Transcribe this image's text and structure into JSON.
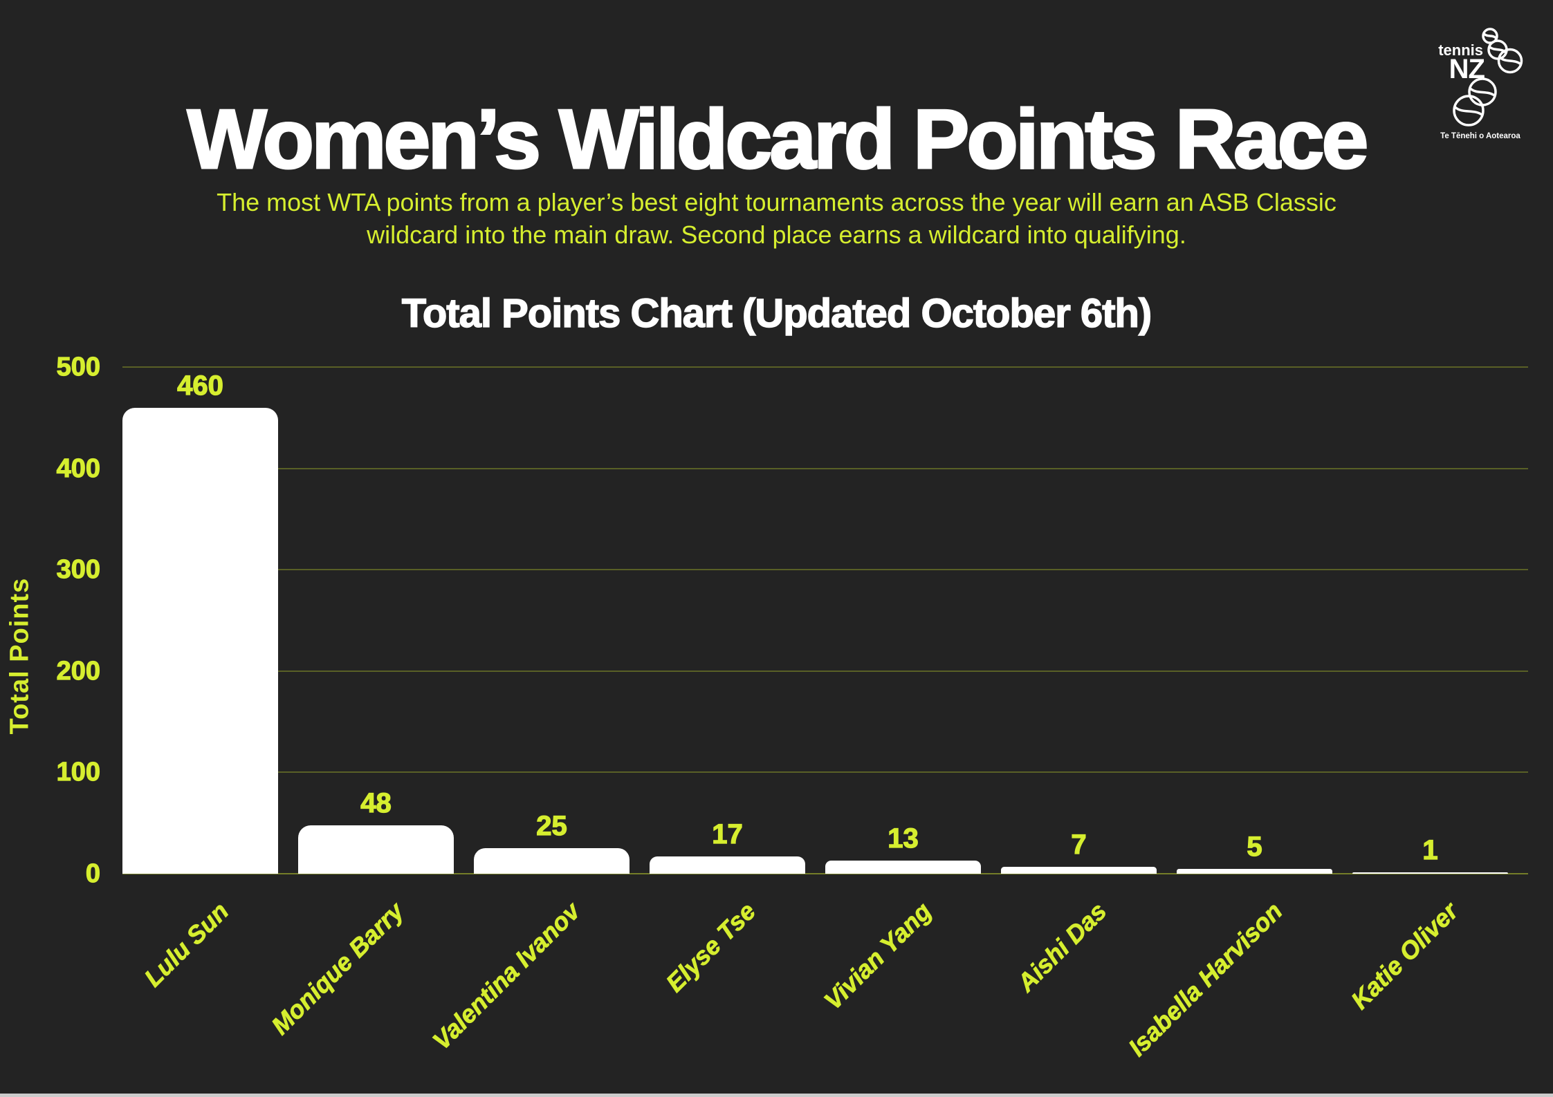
{
  "theme": {
    "background": "#232323",
    "accent": "#d6ee2f",
    "bar_color": "#ffffff",
    "grid_color": "rgba(214,238,47,0.30)",
    "zero_line_color": "rgba(214,238,47,0.45)",
    "title_color": "#ffffff",
    "bottom_strip_color": "#cbcbcb"
  },
  "header": {
    "title": "Women’s Wildcard Points Race",
    "subtitle": "The most WTA points from a player’s best eight tournaments across the year will earn an ASB Classic wildcard into the main draw. Second place earns a wildcard into qualifying."
  },
  "logo": {
    "line1": "tennis",
    "line2": "NZ",
    "tagline": "Te Tēnehi o Aotearoa"
  },
  "chart_data": {
    "type": "bar",
    "title": "Total Points Chart (Updated October 6th)",
    "categories": [
      "Lulu Sun",
      "Monique Barry",
      "Valentina Ivanov",
      "Elyse Tse",
      "Vivian Yang",
      "Aishi Das",
      "Isabella Harvison",
      "Katie Oliver"
    ],
    "values": [
      460,
      48,
      25,
      17,
      13,
      7,
      5,
      1
    ],
    "xlabel": "",
    "ylabel": "Total Points",
    "ylim": [
      0,
      500
    ],
    "yticks": [
      0,
      100,
      200,
      300,
      400,
      500
    ],
    "grid": true,
    "legend": false,
    "bar_corner": "rounded-top"
  }
}
